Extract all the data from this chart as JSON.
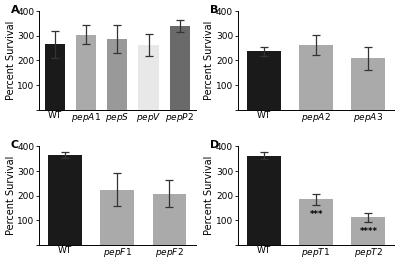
{
  "panels": [
    {
      "label": "A",
      "categories": [
        "WT",
        "pepA1",
        "pepS",
        "pepV",
        "pepP2"
      ],
      "values": [
        265,
        305,
        287,
        262,
        340
      ],
      "errors": [
        55,
        40,
        55,
        45,
        25
      ],
      "bar_colors": [
        "#1a1a1a",
        "#aaaaaa",
        "#999999",
        "#e8e8e8",
        "#6a6a6a"
      ],
      "ylim": [
        0,
        400
      ],
      "yticks": [
        0,
        100,
        200,
        300,
        400
      ],
      "sig_labels": [
        "",
        "",
        "",
        "",
        ""
      ]
    },
    {
      "label": "B",
      "categories": [
        "WT",
        "pepA2",
        "pepA3"
      ],
      "values": [
        238,
        263,
        208
      ],
      "errors": [
        18,
        42,
        48
      ],
      "bar_colors": [
        "#1a1a1a",
        "#aaaaaa",
        "#aaaaaa"
      ],
      "ylim": [
        0,
        400
      ],
      "yticks": [
        0,
        100,
        200,
        300,
        400
      ],
      "sig_labels": [
        "",
        "",
        ""
      ]
    },
    {
      "label": "C",
      "categories": [
        "WT",
        "pepF1",
        "pepF2"
      ],
      "values": [
        365,
        225,
        208
      ],
      "errors": [
        12,
        68,
        55
      ],
      "bar_colors": [
        "#1a1a1a",
        "#aaaaaa",
        "#aaaaaa"
      ],
      "ylim": [
        0,
        400
      ],
      "yticks": [
        0,
        100,
        200,
        300,
        400
      ],
      "sig_labels": [
        "",
        "",
        ""
      ]
    },
    {
      "label": "D",
      "categories": [
        "WT",
        "pepT1",
        "pepT2"
      ],
      "values": [
        362,
        185,
        113
      ],
      "errors": [
        15,
        22,
        18
      ],
      "bar_colors": [
        "#1a1a1a",
        "#aaaaaa",
        "#aaaaaa"
      ],
      "ylim": [
        0,
        400
      ],
      "yticks": [
        0,
        100,
        200,
        300,
        400
      ],
      "sig_labels": [
        "",
        "***",
        "****"
      ]
    }
  ],
  "background_color": "#ffffff",
  "tick_fontsize": 6.5,
  "ylabel_fontsize": 7.0,
  "panel_label_fontsize": 8,
  "sig_fontsize": 6.0,
  "ylabel": "Percent Survival"
}
